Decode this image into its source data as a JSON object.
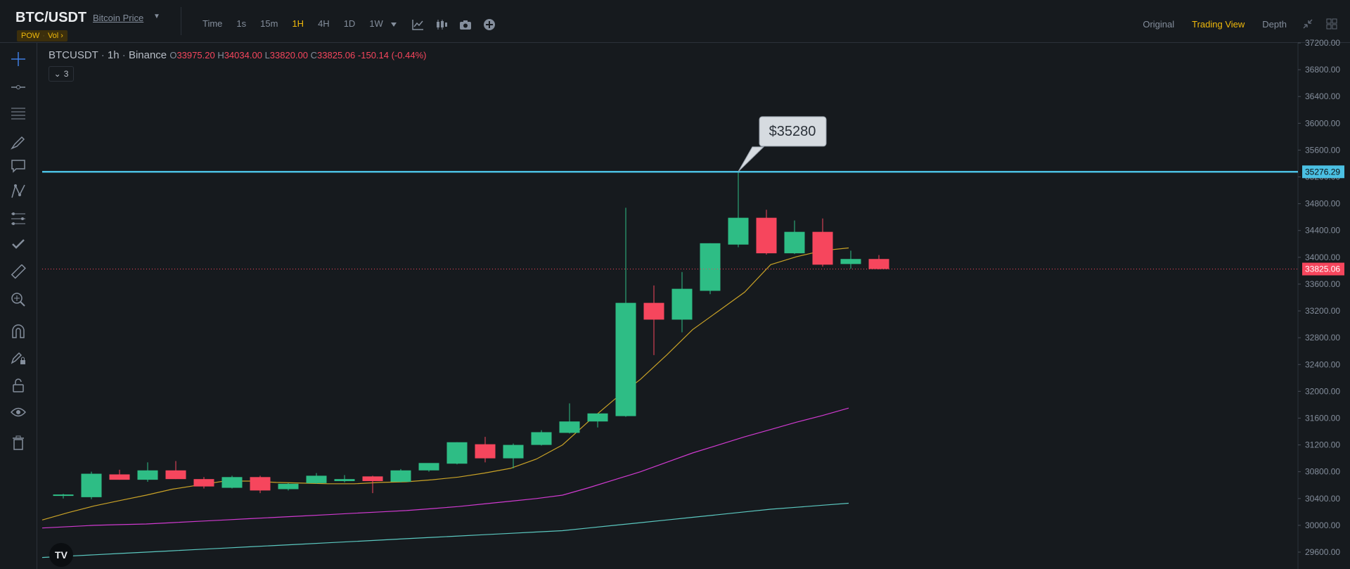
{
  "header": {
    "pair": "BTC/USDT",
    "subtitle": "Bitcoin Price",
    "badge_left": "POW",
    "badge_right": "Vol",
    "intervals": [
      {
        "label": "Time",
        "active": false
      },
      {
        "label": "1s",
        "active": false
      },
      {
        "label": "15m",
        "active": false
      },
      {
        "label": "1H",
        "active": true
      },
      {
        "label": "4H",
        "active": false
      },
      {
        "label": "1D",
        "active": false
      },
      {
        "label": "1W",
        "active": false
      }
    ],
    "toolbar_icons": [
      "dropdown-caret-icon",
      "indicators-icon",
      "candle-type-icon",
      "camera-icon",
      "add-icon"
    ],
    "view_tabs": [
      {
        "label": "Original",
        "active": false
      },
      {
        "label": "Trading View",
        "active": true
      },
      {
        "label": "Depth",
        "active": false
      }
    ]
  },
  "left_tools": [
    "crosshair-icon",
    "trend-line-icon",
    "fib-icon",
    "brush-icon",
    "text-icon",
    "pattern-icon",
    "prediction-icon",
    "check-icon",
    "ruler-icon",
    "zoom-in-icon",
    "magnet-icon",
    "lock-drawing-icon",
    "lock-icon",
    "eye-icon",
    "trash-icon"
  ],
  "legend": {
    "symbol": "BTCUSDT",
    "interval": "1h",
    "exchange": "Binance",
    "open_label": "O",
    "open": "33975.20",
    "high_label": "H",
    "high": "34034.00",
    "low_label": "L",
    "low": "33820.00",
    "close_label": "C",
    "close": "33825.06",
    "change": "-150.14 (-0.44%)",
    "indicator_count": "3"
  },
  "annotation": {
    "text": "$35280"
  },
  "horizontal_line": {
    "price": 35276.29,
    "label": "35276.29",
    "color": "#4bc0e3"
  },
  "last_price": {
    "price": 33825.06,
    "label": "33825.06",
    "color": "#f6465d"
  },
  "chart_data": {
    "type": "candlestick",
    "symbol": "BTCUSDT",
    "interval": "1h",
    "y_axis_ticks": [
      37200,
      36800,
      36400,
      36000,
      35600,
      35200,
      34800,
      34400,
      34000,
      33600,
      33200,
      32800,
      32400,
      32000,
      31600,
      31200,
      30800,
      30400,
      30000,
      29600
    ],
    "y_axis_tick_labels": [
      "37200.00",
      "36800.00",
      "36400.00",
      "36000.00",
      "35600.00",
      "35200.00",
      "34800.00",
      "34400.00",
      "34000.00",
      "33600.00",
      "33200.00",
      "32800.00",
      "32400.00",
      "32000.00",
      "31600.00",
      "31200.00",
      "30800.00",
      "30400.00",
      "30000.00",
      "29600.00"
    ],
    "candles": [
      {
        "o": 30440,
        "h": 30470,
        "l": 30400,
        "c": 30460
      },
      {
        "o": 30420,
        "h": 30800,
        "l": 30390,
        "c": 30770
      },
      {
        "o": 30760,
        "h": 30830,
        "l": 30680,
        "c": 30680
      },
      {
        "o": 30680,
        "h": 30940,
        "l": 30650,
        "c": 30820
      },
      {
        "o": 30820,
        "h": 30960,
        "l": 30690,
        "c": 30690
      },
      {
        "o": 30690,
        "h": 30720,
        "l": 30550,
        "c": 30580
      },
      {
        "o": 30560,
        "h": 30740,
        "l": 30550,
        "c": 30720
      },
      {
        "o": 30720,
        "h": 30740,
        "l": 30480,
        "c": 30520
      },
      {
        "o": 30540,
        "h": 30630,
        "l": 30520,
        "c": 30620
      },
      {
        "o": 30630,
        "h": 30780,
        "l": 30620,
        "c": 30740
      },
      {
        "o": 30660,
        "h": 30750,
        "l": 30640,
        "c": 30690
      },
      {
        "o": 30730,
        "h": 30740,
        "l": 30480,
        "c": 30660
      },
      {
        "o": 30650,
        "h": 30840,
        "l": 30640,
        "c": 30820
      },
      {
        "o": 30820,
        "h": 30920,
        "l": 30800,
        "c": 30930
      },
      {
        "o": 30920,
        "h": 31240,
        "l": 30910,
        "c": 31240
      },
      {
        "o": 31210,
        "h": 31320,
        "l": 30940,
        "c": 31000
      },
      {
        "o": 31000,
        "h": 31220,
        "l": 30850,
        "c": 31200
      },
      {
        "o": 31200,
        "h": 31420,
        "l": 31190,
        "c": 31390
      },
      {
        "o": 31380,
        "h": 31820,
        "l": 31370,
        "c": 31550
      },
      {
        "o": 31550,
        "h": 31640,
        "l": 31460,
        "c": 31670
      },
      {
        "o": 31630,
        "h": 34740,
        "l": 31620,
        "c": 33320
      },
      {
        "o": 33320,
        "h": 33580,
        "l": 32540,
        "c": 33070
      },
      {
        "o": 33070,
        "h": 33780,
        "l": 32880,
        "c": 33530
      },
      {
        "o": 33500,
        "h": 34210,
        "l": 33450,
        "c": 34210
      },
      {
        "o": 34190,
        "h": 35280,
        "l": 34150,
        "c": 34590
      },
      {
        "o": 34590,
        "h": 34710,
        "l": 34040,
        "c": 34060
      },
      {
        "o": 34060,
        "h": 34550,
        "l": 34050,
        "c": 34380
      },
      {
        "o": 34380,
        "h": 34580,
        "l": 33860,
        "c": 33890
      },
      {
        "o": 33900,
        "h": 34100,
        "l": 33830,
        "c": 33975
      },
      {
        "o": 33975,
        "h": 34034,
        "l": 33820,
        "c": 33825
      }
    ],
    "moving_averages": [
      {
        "color": "#c9a227",
        "values": [
          30080,
          30190,
          30290,
          30370,
          30450,
          30540,
          30600,
          30660,
          30660,
          30640,
          30630,
          30620,
          30620,
          30640,
          30650,
          30680,
          30720,
          30780,
          30850,
          30990,
          31200,
          31550,
          31880,
          32180,
          32540,
          32920,
          33200,
          33480,
          33890,
          34010,
          34100,
          34140
        ]
      },
      {
        "color": "#d03ad0",
        "values": [
          29960,
          29980,
          30000,
          30010,
          30020,
          30040,
          30060,
          30080,
          30100,
          30120,
          30140,
          30160,
          30180,
          30200,
          30220,
          30250,
          30280,
          30320,
          30360,
          30400,
          30450,
          30560,
          30680,
          30800,
          30940,
          31080,
          31200,
          31320,
          31430,
          31540,
          31640,
          31750
        ]
      },
      {
        "color": "#5bc8c0",
        "values": [
          29520,
          29540,
          29560,
          29580,
          29600,
          29620,
          29640,
          29660,
          29680,
          29700,
          29720,
          29740,
          29760,
          29780,
          29800,
          29820,
          29840,
          29860,
          29880,
          29900,
          29920,
          29960,
          30000,
          30040,
          30080,
          30120,
          30160,
          30200,
          30240,
          30270,
          30300,
          30330
        ]
      }
    ]
  }
}
